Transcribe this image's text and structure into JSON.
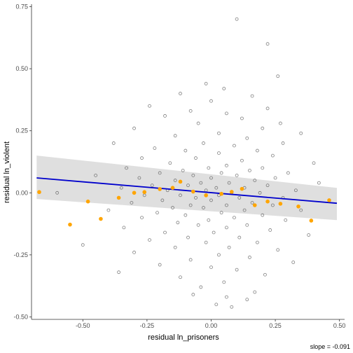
{
  "chart_data": {
    "type": "scatter",
    "xlabel": "residual ln_prisoners",
    "ylabel": "residual ln_violent",
    "xlim": [
      -0.7,
      0.52
    ],
    "ylim": [
      -0.51,
      0.76
    ],
    "x_ticks": [
      {
        "value": -0.5,
        "label": "-0.50"
      },
      {
        "value": -0.25,
        "label": "-0.25"
      },
      {
        "value": 0.0,
        "label": "0.00"
      },
      {
        "value": 0.25,
        "label": "0.25"
      },
      {
        "value": 0.5,
        "label": "0.50"
      }
    ],
    "y_ticks": [
      {
        "value": -0.5,
        "label": "-0.50"
      },
      {
        "value": -0.25,
        "label": "-0.25"
      },
      {
        "value": 0.0,
        "label": "0.00"
      },
      {
        "value": 0.25,
        "label": "0.25"
      },
      {
        "value": 0.5,
        "label": "0.50"
      },
      {
        "value": 0.75,
        "label": "0.75"
      }
    ],
    "grid": false,
    "annotation": "slope = -0.091",
    "fit_line": {
      "x": [
        -0.68,
        0.49
      ],
      "y": [
        0.06,
        -0.042
      ],
      "ci_upper": [
        0.15,
        0.02
      ],
      "ci_lower": [
        -0.025,
        -0.11
      ],
      "color": "#0000cc",
      "band_color": "#d9d9d9"
    },
    "series": [
      {
        "marker": "open-circle",
        "color": "#555555",
        "points": [
          [
            0.1,
            0.7
          ],
          [
            0.22,
            0.6
          ],
          [
            0.26,
            0.47
          ],
          [
            -0.02,
            0.44
          ],
          [
            0.05,
            0.42
          ],
          [
            -0.12,
            0.4
          ],
          [
            0.16,
            0.39
          ],
          [
            0.0,
            0.37
          ],
          [
            -0.24,
            0.35
          ],
          [
            0.22,
            0.34
          ],
          [
            -0.08,
            0.33
          ],
          [
            0.06,
            0.32
          ],
          [
            -0.18,
            0.31
          ],
          [
            0.12,
            0.3
          ],
          [
            0.27,
            0.28
          ],
          [
            -0.05,
            0.28
          ],
          [
            0.2,
            0.26
          ],
          [
            -0.3,
            0.26
          ],
          [
            0.35,
            0.24
          ],
          [
            0.03,
            0.24
          ],
          [
            -0.14,
            0.23
          ],
          [
            0.14,
            0.22
          ],
          [
            -0.38,
            0.2
          ],
          [
            0.28,
            0.2
          ],
          [
            -0.03,
            0.2
          ],
          [
            0.09,
            0.19
          ],
          [
            -0.22,
            0.18
          ],
          [
            0.18,
            0.17
          ],
          [
            -0.1,
            0.17
          ],
          [
            0.03,
            0.16
          ],
          [
            0.24,
            0.15
          ],
          [
            -0.27,
            0.14
          ],
          [
            -0.06,
            0.14
          ],
          [
            0.12,
            0.13
          ],
          [
            0.4,
            0.12
          ],
          [
            -0.16,
            0.12
          ],
          [
            0.06,
            0.11
          ],
          [
            -0.33,
            0.1
          ],
          [
            0.2,
            0.1
          ],
          [
            -0.01,
            0.1
          ],
          [
            -0.11,
            0.09
          ],
          [
            0.15,
            0.09
          ],
          [
            0.3,
            0.08
          ],
          [
            -0.2,
            0.08
          ],
          [
            0.04,
            0.08
          ],
          [
            -0.45,
            0.07
          ],
          [
            -0.07,
            0.07
          ],
          [
            0.1,
            0.07
          ],
          [
            -0.28,
            0.06
          ],
          [
            0.25,
            0.06
          ],
          [
            0.0,
            0.06
          ],
          [
            -0.14,
            0.05
          ],
          [
            0.17,
            0.05
          ],
          [
            0.42,
            0.04
          ],
          [
            -0.04,
            0.04
          ],
          [
            0.07,
            0.04
          ],
          [
            -0.23,
            0.03
          ],
          [
            0.22,
            0.03
          ],
          [
            -0.09,
            0.03
          ],
          [
            0.02,
            0.02
          ],
          [
            0.13,
            0.02
          ],
          [
            -0.35,
            0.02
          ],
          [
            0.33,
            0.01
          ],
          [
            -0.17,
            0.01
          ],
          [
            -0.02,
            0.01
          ],
          [
            0.08,
            0.0
          ],
          [
            -0.6,
            0.0
          ],
          [
            0.19,
            0.0
          ],
          [
            -0.12,
            -0.01
          ],
          [
            0.03,
            -0.01
          ],
          [
            -0.26,
            -0.01
          ],
          [
            0.28,
            -0.02
          ],
          [
            -0.06,
            -0.02
          ],
          [
            0.11,
            -0.02
          ],
          [
            -0.19,
            -0.03
          ],
          [
            0.46,
            -0.03
          ],
          [
            0.0,
            -0.03
          ],
          [
            0.16,
            -0.04
          ],
          [
            -0.31,
            -0.04
          ],
          [
            -0.08,
            -0.05
          ],
          [
            0.06,
            -0.05
          ],
          [
            0.24,
            -0.05
          ],
          [
            -0.15,
            -0.06
          ],
          [
            -0.03,
            -0.06
          ],
          [
            0.13,
            -0.07
          ],
          [
            -0.4,
            -0.07
          ],
          [
            0.35,
            -0.07
          ],
          [
            -0.21,
            -0.08
          ],
          [
            0.04,
            -0.08
          ],
          [
            -0.1,
            -0.09
          ],
          [
            0.2,
            -0.09
          ],
          [
            0.09,
            -0.1
          ],
          [
            -0.27,
            -0.1
          ],
          [
            -0.01,
            -0.11
          ],
          [
            0.29,
            -0.11
          ],
          [
            -0.13,
            -0.12
          ],
          [
            0.14,
            -0.13
          ],
          [
            -0.05,
            -0.13
          ],
          [
            -0.34,
            -0.14
          ],
          [
            0.06,
            -0.14
          ],
          [
            0.23,
            -0.15
          ],
          [
            -0.18,
            -0.16
          ],
          [
            0.01,
            -0.16
          ],
          [
            0.38,
            -0.17
          ],
          [
            -0.09,
            -0.18
          ],
          [
            0.11,
            -0.18
          ],
          [
            -0.24,
            -0.19
          ],
          [
            0.18,
            -0.2
          ],
          [
            -0.02,
            -0.2
          ],
          [
            -0.5,
            -0.21
          ],
          [
            0.07,
            -0.22
          ],
          [
            -0.14,
            -0.22
          ],
          [
            0.26,
            -0.23
          ],
          [
            -0.3,
            -0.24
          ],
          [
            0.03,
            -0.25
          ],
          [
            0.15,
            -0.26
          ],
          [
            -0.08,
            -0.27
          ],
          [
            0.32,
            -0.28
          ],
          [
            -0.2,
            -0.29
          ],
          [
            0.0,
            -0.3
          ],
          [
            0.1,
            -0.31
          ],
          [
            -0.36,
            -0.32
          ],
          [
            0.21,
            -0.33
          ],
          [
            -0.12,
            -0.34
          ],
          [
            0.05,
            -0.36
          ],
          [
            -0.04,
            -0.38
          ],
          [
            0.17,
            -0.4
          ],
          [
            -0.07,
            -0.41
          ],
          [
            0.06,
            -0.42
          ],
          [
            0.14,
            -0.43
          ],
          [
            0.02,
            -0.45
          ],
          [
            0.08,
            -0.46
          ]
        ]
      },
      {
        "marker": "filled-circle",
        "color": "#ffa500",
        "points": [
          [
            -0.67,
            0.003
          ],
          [
            -0.55,
            -0.128
          ],
          [
            -0.48,
            -0.035
          ],
          [
            -0.43,
            -0.105
          ],
          [
            -0.36,
            -0.02
          ],
          [
            -0.3,
            0.0
          ],
          [
            -0.26,
            0.003
          ],
          [
            -0.2,
            0.015
          ],
          [
            -0.15,
            0.02
          ],
          [
            -0.12,
            0.045
          ],
          [
            -0.07,
            0.005
          ],
          [
            -0.02,
            -0.01
          ],
          [
            0.04,
            -0.004
          ],
          [
            0.08,
            0.004
          ],
          [
            0.12,
            0.016
          ],
          [
            0.17,
            -0.05
          ],
          [
            0.22,
            -0.035
          ],
          [
            0.27,
            -0.044
          ],
          [
            0.34,
            -0.055
          ],
          [
            0.39,
            -0.112
          ],
          [
            0.46,
            -0.03
          ]
        ]
      }
    ]
  }
}
